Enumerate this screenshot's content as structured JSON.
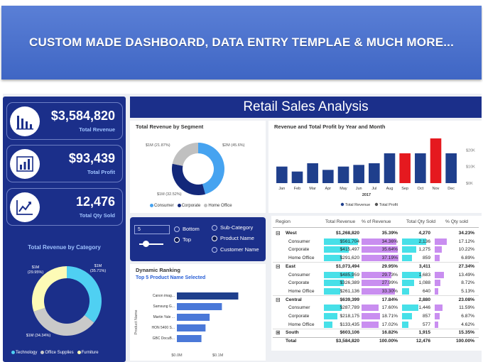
{
  "banner": {
    "text": "CUSTOM MADE DASHBOARD, DATA ENTRY TEMPLAE & MUCH MORE..."
  },
  "dashboard_title": "Retail Sales Analysis",
  "kpis": [
    {
      "value": "$3,584,820",
      "label": "Total Revenue",
      "icon": "bar-chart-icon"
    },
    {
      "value": "$93,439",
      "label": "Total Profit",
      "icon": "column-chart-icon"
    },
    {
      "value": "12,476",
      "label": "Total Qty Sold",
      "icon": "line-chart-icon"
    }
  ],
  "category_chart": {
    "title": "Total Revenue by Category",
    "slices": [
      {
        "name": "Technology",
        "label": "$1M (35.71%)",
        "value": 35.71,
        "color": "#4fd0f2"
      },
      {
        "name": "Office Supplies",
        "label": "$1M (34.34%)",
        "value": 34.34,
        "color": "#c9c9c9"
      },
      {
        "name": "Furniture",
        "label": "$1M (29.95%)",
        "value": 29.95,
        "color": "#fdfbb6"
      }
    ],
    "legend": [
      "Technology",
      "Office Supplies",
      "Furniture"
    ]
  },
  "segment_chart": {
    "title": "Total Revenue by Segment",
    "slices": [
      {
        "name": "Consumer",
        "label": "$2M (45.6%)",
        "value": 45.6,
        "color": "#46a3f0"
      },
      {
        "name": "Corporate",
        "label": "$1M (32.52%)",
        "value": 32.52,
        "color": "#13287a"
      },
      {
        "name": "Home Office",
        "label": "$1M (21.87%)",
        "value": 21.87,
        "color": "#c0c0c0"
      }
    ],
    "legend": [
      "Consumer",
      "Corporate",
      "Home Office"
    ]
  },
  "chart_data": [
    {
      "type": "bar",
      "title": "Revenue and Total Profit by Year and Month",
      "categories": [
        "Jan",
        "Feb",
        "Mar",
        "Apr",
        "May",
        "Jun",
        "Jul",
        "Aug",
        "Sep",
        "Oct",
        "Nov",
        "Dec"
      ],
      "year_label": "2017",
      "series": [
        {
          "name": "Total Revenue",
          "values": [
            10000,
            7000,
            12000,
            8000,
            10000,
            11000,
            12000,
            18000,
            18000,
            18000,
            27000,
            18000
          ]
        }
      ],
      "highlighted": [
        "Sep",
        "Nov"
      ],
      "yticks": [
        "$20K",
        "$10K",
        "$0K"
      ],
      "ylim": [
        0,
        30000
      ],
      "legend": [
        "Total Revenue",
        "Total Profit"
      ]
    },
    {
      "type": "bar",
      "title": "Dynamic Ranking",
      "subtitle": "Top 5 Product Name Selected",
      "ylabel": "Product Name",
      "categories": [
        "Canon imag...",
        "Samsung G...",
        "Martin Yale ...",
        "HON 5400 S...",
        "GBC DocuB..."
      ],
      "values": [
        0.15,
        0.11,
        0.08,
        0.07,
        0.06
      ],
      "xticks": [
        "$0.0M",
        "$0.1M"
      ],
      "xlim": [
        0,
        0.17
      ]
    }
  ],
  "filter": {
    "input_value": "5",
    "options_left": [
      {
        "label": "Bottom",
        "selected": false
      },
      {
        "label": "Top",
        "selected": true
      }
    ],
    "options_right": [
      {
        "label": "Sub-Category",
        "selected": false
      },
      {
        "label": "Product Name",
        "selected": true
      },
      {
        "label": "Customer Name",
        "selected": false
      }
    ]
  },
  "table": {
    "headers": [
      "Region",
      "Total Revenue",
      "% of Revenue",
      "Total Qty Sold",
      "% Qty sold"
    ],
    "rows": [
      {
        "kind": "group",
        "toggle": "⊟",
        "name": "West",
        "rev": "$1,268,820",
        "pct": "35.39%",
        "qty": "4,270",
        "qpct": "34.23%"
      },
      {
        "kind": "sub",
        "name": "Consumer",
        "rev": "$561,704",
        "pct": "34.36%",
        "qty": "2,136",
        "qpct": "17.12%",
        "rb": 0.95,
        "pb": 0.95,
        "qb": 0.95,
        "qpb": 0.55
      },
      {
        "kind": "sub",
        "name": "Corporate",
        "rev": "$415,497",
        "pct": "35.64%",
        "qty": "1,275",
        "qpct": "10.22%",
        "rb": 0.7,
        "pb": 0.99,
        "qb": 0.56,
        "qpb": 0.33
      },
      {
        "kind": "sub",
        "name": "Home Office",
        "rev": "$291,620",
        "pct": "37.19%",
        "qty": "859",
        "qpct": "6.89%",
        "rb": 0.5,
        "pb": 1.0,
        "qb": 0.38,
        "qpb": 0.22
      },
      {
        "kind": "group",
        "toggle": "⊟",
        "name": "East",
        "rev": "$1,073,494",
        "pct": "29.95%",
        "qty": "3,411",
        "qpct": "27.34%"
      },
      {
        "kind": "sub",
        "name": "Consumer",
        "rev": "$485,959",
        "pct": "29.73%",
        "qty": "1,683",
        "qpct": "13.49%",
        "rb": 0.83,
        "pb": 0.8,
        "qb": 0.75,
        "qpb": 0.44
      },
      {
        "kind": "sub",
        "name": "Corporate",
        "rev": "$326,389",
        "pct": "27.99%",
        "qty": "1,088",
        "qpct": "8.72%",
        "rb": 0.56,
        "pb": 0.75,
        "qb": 0.48,
        "qpb": 0.28
      },
      {
        "kind": "sub",
        "name": "Home Office",
        "rev": "$261,136",
        "pct": "33.30%",
        "qty": "640",
        "qpct": "5.13%",
        "rb": 0.45,
        "pb": 0.9,
        "qb": 0.28,
        "qpb": 0.17
      },
      {
        "kind": "group",
        "toggle": "⊟",
        "name": "Central",
        "rev": "$639,399",
        "pct": "17.84%",
        "qty": "2,880",
        "qpct": "23.08%"
      },
      {
        "kind": "sub",
        "name": "Consumer",
        "rev": "$287,789",
        "pct": "17.60%",
        "qty": "1,446",
        "qpct": "11.59%",
        "rb": 0.5,
        "pb": 0.47,
        "qb": 0.65,
        "qpb": 0.37
      },
      {
        "kind": "sub",
        "name": "Corporate",
        "rev": "$218,175",
        "pct": "18.71%",
        "qty": "857",
        "qpct": "6.87%",
        "rb": 0.38,
        "pb": 0.5,
        "qb": 0.38,
        "qpb": 0.22
      },
      {
        "kind": "sub",
        "name": "Home Office",
        "rev": "$133,435",
        "pct": "17.02%",
        "qty": "577",
        "qpct": "4.62%",
        "rb": 0.23,
        "pb": 0.46,
        "qb": 0.26,
        "qpb": 0.15
      },
      {
        "kind": "group",
        "toggle": "⊞",
        "name": "South",
        "rev": "$603,106",
        "pct": "16.82%",
        "qty": "1,915",
        "qpct": "15.35%"
      },
      {
        "kind": "total",
        "name": "Total",
        "rev": "$3,584,820",
        "pct": "100.00%",
        "qty": "12,476",
        "qpct": "100.00%"
      }
    ]
  },
  "colors": {
    "navy": "#1b2f8a",
    "revenue_bar": "#1f3f8c",
    "highlight_bar": "#e5191f",
    "cyan_bar": "#47e0e8",
    "violet_bar": "#c98ef0"
  }
}
